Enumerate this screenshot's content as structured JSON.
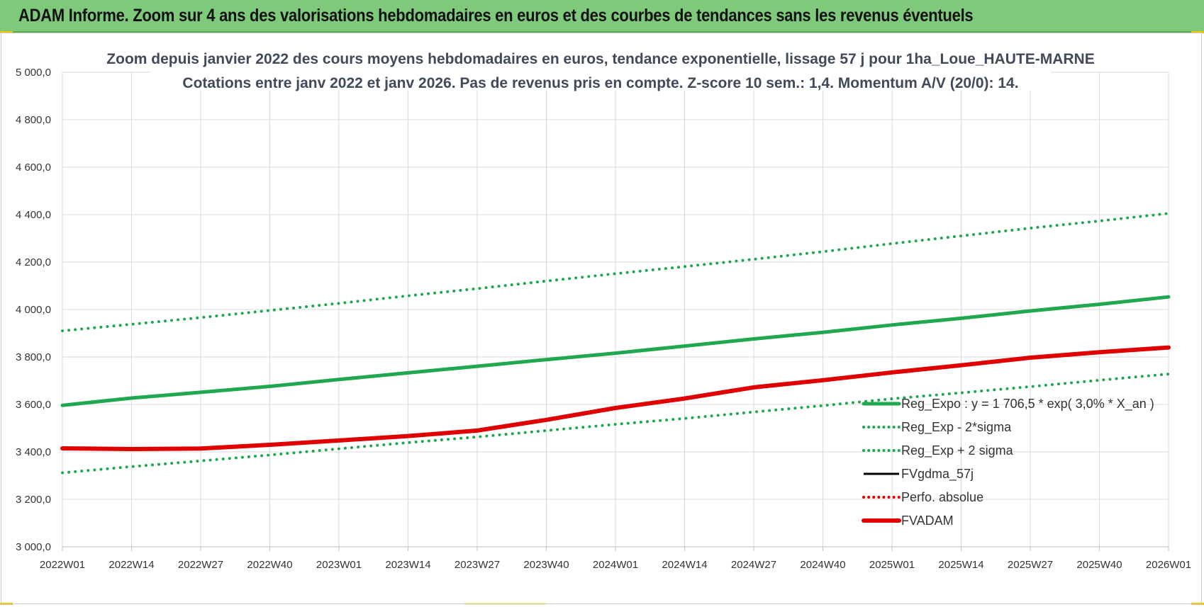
{
  "banner": {
    "title": "ADAM Informe. Zoom sur 4 ans des valorisations hebdomadaires en euros et des courbes de tendances sans les revenus éventuels"
  },
  "chart_data": {
    "type": "line",
    "title_line1": "Zoom depuis janvier 2022 des cours moyens hebdomadaires en euros, tendance exponentielle, lissage 57 j pour 1ha_Loue_HAUTE-MARNE",
    "title_line2": "Cotations entre janv 2022 et janv 2026. Pas de revenus pris en compte. Z-score 10 sem.: 1,4. Momentum A/V (20/0): 14.",
    "categories": [
      "2022W01",
      "2022W14",
      "2022W27",
      "2022W40",
      "2023W01",
      "2023W14",
      "2023W27",
      "2023W40",
      "2024W01",
      "2024W14",
      "2024W27",
      "2024W40",
      "2025W01",
      "2025W14",
      "2025W27",
      "2025W40",
      "2026W01"
    ],
    "yticks": [
      "3 000,0",
      "3 200,0",
      "3 400,0",
      "3 600,0",
      "3 800,0",
      "4 000,0",
      "4 200,0",
      "4 400,0",
      "4 600,0",
      "4 800,0",
      "5 000,0"
    ],
    "ylim": [
      3000,
      5000
    ],
    "grid": true,
    "legend_position": "bottom-right",
    "series": [
      {
        "name": "Reg_Expo : y = 1 706,5 * exp( 3,0% *  X_an )",
        "style": "solid-thick",
        "color": "#1fa84f",
        "values": [
          3596,
          3627,
          3651,
          3676,
          3705,
          3733,
          3761,
          3789,
          3816,
          3846,
          3876,
          3904,
          3935,
          3963,
          3994,
          4022,
          4053
        ]
      },
      {
        "name": "Reg_Exp - 2*sigma",
        "style": "dotted",
        "color": "#1fa84f",
        "values": [
          3312,
          3338,
          3362,
          3387,
          3413,
          3439,
          3463,
          3490,
          3516,
          3541,
          3568,
          3595,
          3624,
          3649,
          3675,
          3702,
          3728
        ]
      },
      {
        "name": "Reg_Exp + 2 sigma",
        "style": "dotted",
        "color": "#1fa84f",
        "values": [
          3910,
          3938,
          3966,
          3996,
          4026,
          4058,
          4088,
          4120,
          4151,
          4181,
          4212,
          4244,
          4278,
          4310,
          4343,
          4373,
          4405
        ]
      },
      {
        "name": "FVgdma_57j",
        "style": "solid",
        "color": "#000000",
        "values": [
          3415,
          3412,
          3414,
          3430,
          3448,
          3467,
          3492,
          3535,
          3585,
          3625,
          3672,
          3702,
          3735,
          3765,
          3797,
          3820,
          3840
        ]
      },
      {
        "name": "Perfo. absolue",
        "style": "dotted",
        "color": "#e00000",
        "values": [
          3415,
          3412,
          3414,
          3430,
          3448,
          3467,
          3492,
          3535,
          3585,
          3625,
          3672,
          3702,
          3735,
          3765,
          3797,
          3820,
          3840
        ]
      },
      {
        "name": "FVADAM",
        "style": "solid-thick",
        "color": "#e00000",
        "values": [
          3415,
          3412,
          3414,
          3430,
          3448,
          3467,
          3490,
          3535,
          3585,
          3625,
          3672,
          3702,
          3735,
          3765,
          3797,
          3820,
          3840
        ]
      }
    ]
  }
}
